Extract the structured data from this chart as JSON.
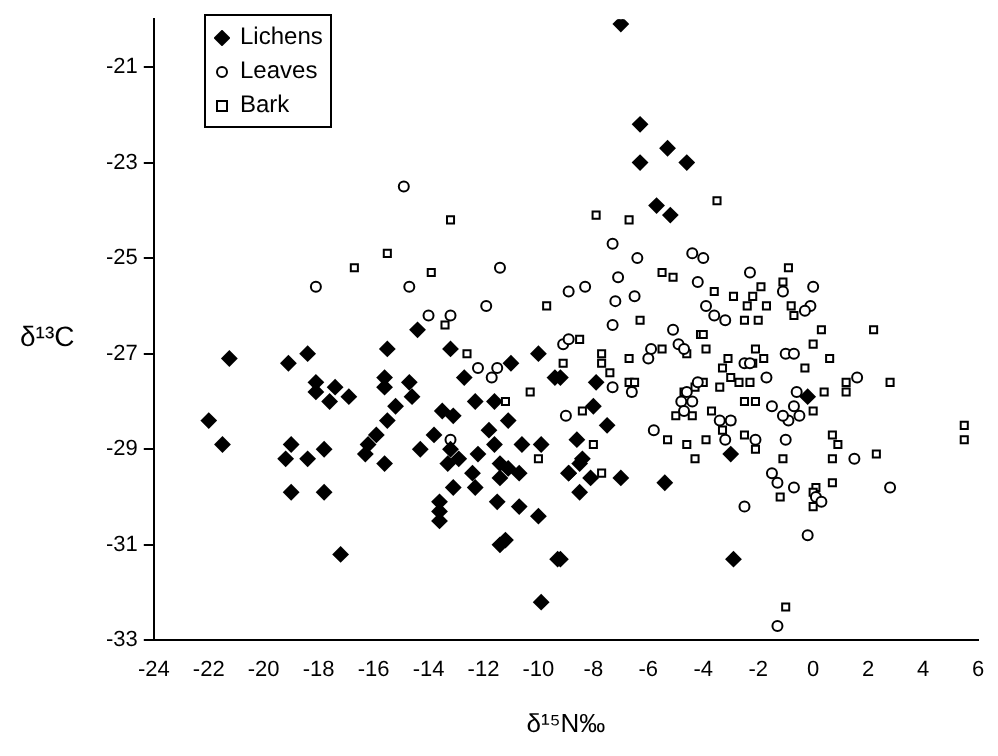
{
  "chart_data": {
    "type": "scatter",
    "xlabel": "δ¹⁵N‰",
    "ylabel": "δ¹³C",
    "xlim": [
      -24,
      6
    ],
    "xticks": [
      -24,
      -22,
      -20,
      -18,
      -16,
      -14,
      -12,
      -10,
      -8,
      -6,
      -4,
      -2,
      0,
      2,
      4,
      6
    ],
    "ylim": [
      -33,
      -20
    ],
    "yticks": [
      -33,
      -31,
      -29,
      -27,
      -25,
      -23,
      -21
    ],
    "grid": false,
    "legend": "top left",
    "series": [
      {
        "name": "Lichens",
        "color": "#000000",
        "marker": "diamond",
        "x": [
          -7.0,
          -6.3,
          -6.3,
          -5.3,
          -4.6,
          -5.7,
          -5.2,
          -21.25,
          -22.0,
          -21.5,
          -19.1,
          -18.4,
          -18.1,
          -17.4,
          -18.1,
          -17.6,
          -16.9,
          -19.0,
          -19.2,
          -18.4,
          -17.8,
          -19.0,
          -17.8,
          -17.2,
          -15.5,
          -15.6,
          -15.6,
          -14.7,
          -14.6,
          -15.2,
          -15.5,
          -15.9,
          -16.2,
          -16.3,
          -15.6,
          -14.4,
          -14.3,
          -13.8,
          -13.2,
          -12.7,
          -13.5,
          -13.1,
          -13.2,
          -12.9,
          -13.3,
          -12.3,
          -11.6,
          -12.2,
          -12.4,
          -13.1,
          -12.3,
          -11.8,
          -11.6,
          -11.1,
          -11.0,
          -11.4,
          -11.1,
          -10.7,
          -10.6,
          -11.4,
          -13.6,
          -13.6,
          -13.6,
          -11.5,
          -10.7,
          -10.0,
          -11.2,
          -11.4,
          -10.0,
          -9.9,
          -8.9,
          -9.3,
          -9.9,
          -9.4,
          -9.2,
          -7.9,
          -8.0,
          -7.5,
          -8.6,
          -8.4,
          -8.5,
          -8.9,
          -8.1,
          -8.5,
          -7.0,
          -5.4,
          -9.2,
          -2.9,
          -3.0,
          -0.2
        ],
        "values": [
          -20.1,
          -22.2,
          -23.0,
          -22.7,
          -23.0,
          -23.9,
          -24.1,
          -27.1,
          -28.4,
          -28.9,
          -27.2,
          -27.0,
          -27.6,
          -27.7,
          -27.8,
          -28.0,
          -27.9,
          -28.9,
          -29.2,
          -29.2,
          -29.0,
          -29.9,
          -29.9,
          -31.2,
          -26.9,
          -27.5,
          -27.7,
          -27.6,
          -27.9,
          -28.1,
          -28.4,
          -28.7,
          -28.9,
          -29.1,
          -29.3,
          -26.5,
          -29.0,
          -28.7,
          -26.9,
          -27.5,
          -28.2,
          -28.3,
          -29.0,
          -29.2,
          -29.3,
          -28.0,
          -28.0,
          -29.1,
          -29.5,
          -29.8,
          -29.8,
          -28.6,
          -28.9,
          -28.4,
          -27.2,
          -29.3,
          -29.4,
          -29.5,
          -28.9,
          -29.6,
          -30.1,
          -30.3,
          -30.5,
          -30.1,
          -30.2,
          -30.4,
          -30.9,
          -31.0,
          -27.0,
          -28.9,
          -29.5,
          -31.3,
          -32.2,
          -27.5,
          -27.5,
          -27.6,
          -28.1,
          -28.5,
          -28.8,
          -29.2,
          -29.3,
          -29.5,
          -29.6,
          -29.9,
          -29.6,
          -29.7,
          -31.3,
          -31.3,
          -29.1,
          -27.9
        ]
      },
      {
        "name": "Leaves",
        "color": "#000000",
        "marker": "circle",
        "x": [
          -14.9,
          -18.1,
          -14.7,
          -11.4,
          -11.9,
          -14.0,
          -13.2,
          -8.9,
          -12.2,
          -11.7,
          -11.5,
          -13.2,
          -9.0,
          -9.1,
          -8.9,
          -7.3,
          -6.4,
          -4.4,
          -4.0,
          -7.1,
          -8.3,
          -7.2,
          -6.5,
          -4.2,
          -2.3,
          0.0,
          -3.9,
          -3.6,
          -3.2,
          -0.1,
          -0.3,
          -1.1,
          -7.3,
          -5.1,
          -5.9,
          -6.0,
          -4.9,
          -4.7,
          -7.3,
          -6.6,
          -5.8,
          -4.8,
          -4.6,
          -4.4,
          -4.2,
          -4.7,
          -3.4,
          -3.0,
          -3.2,
          -2.5,
          -2.3,
          -1.7,
          -2.1,
          -1.5,
          -0.9,
          -1.1,
          -0.7,
          -0.5,
          -0.6,
          -1.0,
          -1.5,
          -1.3,
          -0.7,
          0.1,
          0.3,
          -2.5,
          -0.2,
          -1.3,
          1.5,
          2.8,
          1.6,
          -1.0,
          -0.7
        ],
        "values": [
          -23.5,
          -25.6,
          -25.6,
          -25.2,
          -26.0,
          -26.2,
          -26.2,
          -25.7,
          -27.3,
          -27.5,
          -27.3,
          -28.8,
          -28.3,
          -26.8,
          -26.7,
          -24.7,
          -25.0,
          -24.9,
          -25.0,
          -25.4,
          -25.6,
          -25.9,
          -25.8,
          -25.5,
          -25.3,
          -25.6,
          -26.0,
          -26.2,
          -26.3,
          -26.0,
          -26.1,
          -25.7,
          -26.4,
          -26.5,
          -26.9,
          -27.1,
          -26.8,
          -26.9,
          -27.7,
          -27.8,
          -28.6,
          -28.0,
          -27.8,
          -28.0,
          -27.6,
          -28.2,
          -28.4,
          -28.4,
          -28.8,
          -27.2,
          -27.2,
          -27.5,
          -28.8,
          -28.1,
          -28.4,
          -28.3,
          -28.1,
          -28.3,
          -27.8,
          -28.8,
          -29.5,
          -29.7,
          -29.8,
          -30.0,
          -30.1,
          -30.2,
          -30.8,
          -32.7,
          -29.2,
          -29.8,
          -27.5,
          -27.0,
          -27.0
        ]
      },
      {
        "name": "Bark",
        "color": "#000000",
        "marker": "square",
        "x": [
          -13.2,
          -16.7,
          -15.5,
          -13.9,
          -13.4,
          -9.7,
          -12.6,
          -11.2,
          -10.3,
          -9.1,
          -10.0,
          -3.5,
          -7.9,
          -6.7,
          -5.5,
          -5.1,
          -0.9,
          -1.1,
          -1.9,
          -3.6,
          -2.9,
          -2.2,
          -2.4,
          -1.7,
          -0.8,
          -0.7,
          -6.3,
          -2.5,
          -2.0,
          0.3,
          2.2,
          -4.1,
          -8.5,
          -7.7,
          -7.7,
          -6.7,
          -5.5,
          -4.0,
          -3.9,
          -4.6,
          -2.1,
          -3.1,
          -2.2,
          -1.8,
          -7.4,
          -6.7,
          -6.5,
          -6.6,
          -3.3,
          -0.3,
          0.6,
          2.8,
          0.0,
          -4.0,
          -3.4,
          -3.0,
          -2.7,
          -2.3,
          -4.7,
          -4.3,
          0.4,
          1.2,
          1.2,
          -8.4,
          -5.0,
          -4.4,
          -3.7,
          -3.0,
          -3.3,
          -2.5,
          -2.1,
          0.0,
          -5.3,
          -4.6,
          -4.3,
          -3.9,
          -2.5,
          -2.1,
          -1.1,
          0.7,
          0.9,
          0.7,
          2.3,
          -8.0,
          -7.7,
          0.1,
          0.7,
          0.0,
          -1.2,
          0.0,
          5.5,
          5.5,
          -1.0
        ],
        "values": [
          -24.2,
          -25.2,
          -24.9,
          -25.3,
          -26.4,
          -26.0,
          -27.0,
          -28.0,
          -27.8,
          -27.2,
          -29.2,
          -23.8,
          -24.1,
          -24.2,
          -25.3,
          -25.4,
          -25.2,
          -25.5,
          -25.6,
          -25.7,
          -25.8,
          -25.8,
          -26.0,
          -26.0,
          -26.0,
          -26.2,
          -26.3,
          -26.3,
          -26.3,
          -26.5,
          -26.5,
          -26.6,
          -26.7,
          -27.0,
          -27.2,
          -27.1,
          -26.9,
          -26.6,
          -26.9,
          -27.0,
          -26.9,
          -27.1,
          -27.2,
          -27.1,
          -27.4,
          -27.6,
          -27.6,
          -27.8,
          -27.3,
          -27.3,
          -27.1,
          -27.6,
          -26.8,
          -27.6,
          -27.7,
          -27.5,
          -27.6,
          -27.6,
          -27.8,
          -27.7,
          -27.8,
          -27.8,
          -27.6,
          -28.2,
          -28.3,
          -28.3,
          -28.2,
          -28.4,
          -28.6,
          -28.0,
          -28.0,
          -28.2,
          -28.8,
          -28.9,
          -29.2,
          -28.8,
          -28.7,
          -29.0,
          -29.2,
          -28.7,
          -28.9,
          -29.2,
          -29.1,
          -28.9,
          -29.5,
          -29.8,
          -29.7,
          -29.9,
          -30.0,
          -30.2,
          -28.5,
          -28.8,
          -32.3
        ]
      }
    ]
  }
}
